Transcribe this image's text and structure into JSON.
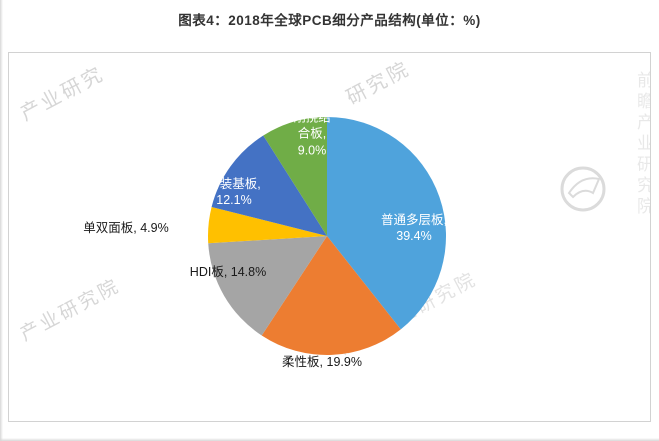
{
  "chart_data": {
    "type": "pie",
    "title": "图表4：2018年全球PCB细分产品结构(单位：%)",
    "unit": "%",
    "legend_position": "none",
    "start_angle_deg": 0,
    "slices": [
      {
        "name": "普通多层板",
        "value": 39.4,
        "color": "#4FA3DC",
        "label": "普通多层板,\n39.4%",
        "label_color": "#ffffff"
      },
      {
        "name": "柔性板",
        "value": 19.9,
        "color": "#ED7D31",
        "label": "柔性板, 19.9%",
        "label_color": "#1a1a1a"
      },
      {
        "name": "HDI板",
        "value": 14.8,
        "color": "#A5A5A5",
        "label": "HDI板, 14.8%",
        "label_color": "#1a1a1a"
      },
      {
        "name": "单双面板",
        "value": 4.9,
        "color": "#FFC000",
        "label": "单双面板, 4.9%",
        "label_color": "#1a1a1a"
      },
      {
        "name": "封装基板",
        "value": 12.1,
        "color": "#4472C4",
        "label": "封装基板,\n12.1%",
        "label_color": "#ffffff"
      },
      {
        "name": "刚挠结合板",
        "value": 9.0,
        "color": "#70AD47",
        "label": "刚挠结\n合板,\n9.0%",
        "label_color": "#ffffff"
      }
    ]
  },
  "watermarks": {
    "top_left": "产业研究",
    "top_right": "研究院",
    "bottom_left": "产业研究院",
    "behind_pie": "前瞻产业研究院",
    "right_edge": "前瞻产业研究院"
  }
}
